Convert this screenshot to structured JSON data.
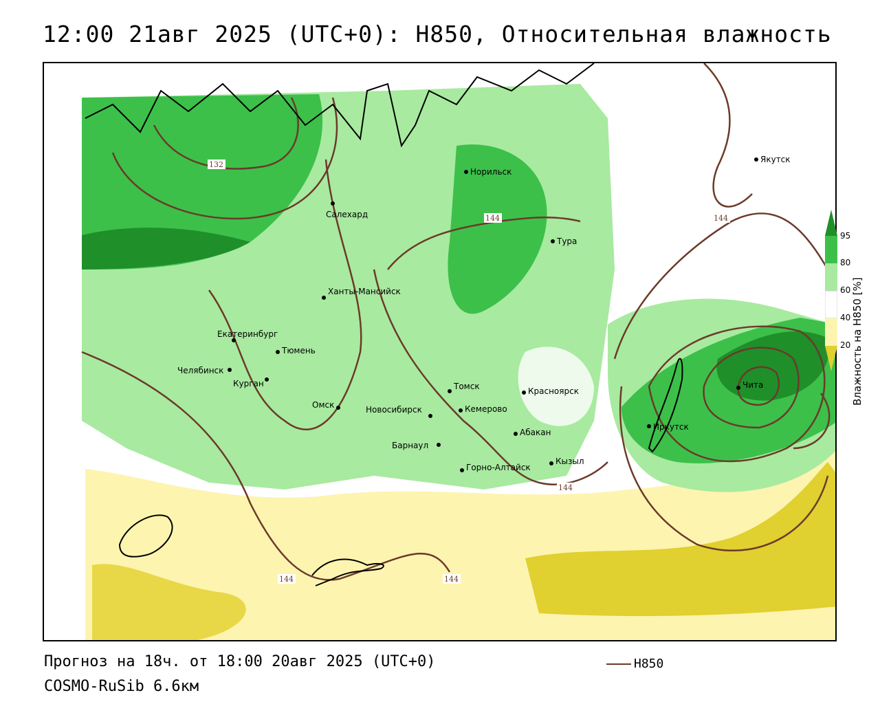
{
  "title": "12:00 21авг 2025 (UTC+0): H850, Относительная влажность",
  "footer": {
    "forecast": "Прогноз на 18ч. от 18:00 20авг 2025 (UTC+0)",
    "model": "COSMO-RuSib 6.6км"
  },
  "legend": {
    "line_label": "H850",
    "line_color": "#6b3a2a",
    "colorbar_title": "Влажность на H850 [%]",
    "ticks": [
      "95",
      "80",
      "60",
      "40",
      "20"
    ],
    "colors": {
      "c95": "#1f8f2a",
      "c80": "#3cc04a",
      "c60": "#a8eaa0",
      "c40": "#ffffff",
      "c20": "#fdf4b0",
      "c0": "#e0d030"
    }
  },
  "isolines": {
    "label_132": "132",
    "label_144_a": "144",
    "label_144_b": "144",
    "label_144_c": "144",
    "label_144_d": "144",
    "label_144_e": "144"
  },
  "cities": [
    {
      "name": "Якутск"
    },
    {
      "name": "Норильск"
    },
    {
      "name": "Салехард"
    },
    {
      "name": "Тура"
    },
    {
      "name": "Ханты-Мансийск"
    },
    {
      "name": "Екатеринбург"
    },
    {
      "name": "Тюмень"
    },
    {
      "name": "Челябинск"
    },
    {
      "name": "Курган"
    },
    {
      "name": "Омск"
    },
    {
      "name": "Новосибирск"
    },
    {
      "name": "Томск"
    },
    {
      "name": "Кемерово"
    },
    {
      "name": "Красноярск"
    },
    {
      "name": "Абакан"
    },
    {
      "name": "Барнаул"
    },
    {
      "name": "Горно-Алтайск"
    },
    {
      "name": "Кызыл"
    },
    {
      "name": "Иркутск"
    },
    {
      "name": "Чита"
    }
  ]
}
